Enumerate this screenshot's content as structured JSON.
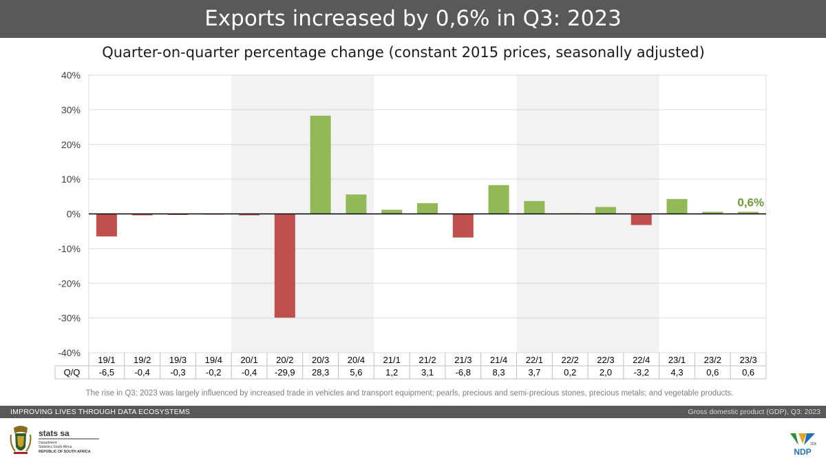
{
  "header": {
    "title": "Exports increased by 0,6% in Q3: 2023",
    "subtitle": "Quarter-on-quarter percentage change (constant 2015 prices, seasonally adjusted)"
  },
  "chart_data": {
    "type": "bar",
    "title": "Quarter-on-quarter percentage change (constant 2015 prices, seasonally adjusted)",
    "categories": [
      "19/1",
      "19/2",
      "19/3",
      "19/4",
      "20/1",
      "20/2",
      "20/3",
      "20/4",
      "21/1",
      "21/2",
      "21/3",
      "21/4",
      "22/1",
      "22/2",
      "22/3",
      "22/4",
      "23/1",
      "23/2",
      "23/3"
    ],
    "series": [
      {
        "name": "Q/Q",
        "values": [
          -6.5,
          -0.4,
          -0.3,
          -0.2,
          -0.4,
          -29.9,
          28.3,
          5.6,
          1.2,
          3.1,
          -6.8,
          8.3,
          3.7,
          0.2,
          2.0,
          -3.2,
          4.3,
          0.6,
          0.6
        ],
        "labels": [
          "-6,5",
          "-0,4",
          "-0,3",
          "-0,2",
          "-0,4",
          "-29,9",
          "28,3",
          "5,6",
          "1,2",
          "3,1",
          "-6,8",
          "8,3",
          "3,7",
          "0,2",
          "2,0",
          "-3,2",
          "4,3",
          "0,6",
          "0,6"
        ]
      }
    ],
    "ylim": [
      -40,
      40
    ],
    "yticks": [
      -40,
      -30,
      -20,
      -10,
      0,
      10,
      20,
      30,
      40
    ],
    "ytick_labels": [
      "-40%",
      "-30%",
      "-20%",
      "-10%",
      "0%",
      "10%",
      "20%",
      "30%",
      "40%"
    ],
    "grid": true,
    "shaded_years": [
      "2020",
      "2022"
    ],
    "table_row_label": "Q/Q",
    "annotation": {
      "text": "0,6%",
      "category": "23/3"
    },
    "colors": {
      "positive": "#92b957",
      "negative": "#c0504d",
      "shade": "#f2f2f2",
      "annotation": "#6e9a34"
    }
  },
  "footnote": "The rise in Q3: 2023 was largely influenced by increased trade in vehicles and transport equipment; pearls, precious and semi-precious stones, precious metals; and vegetable products.",
  "footer": {
    "left": "IMPROVING LIVES THROUGH DATA ECOSYSTEMS",
    "right": "Gross domestic product (GDP), Q3: 2023"
  },
  "logos": {
    "stats_name": "stats sa",
    "stats_dept": "Department:",
    "stats_dept_name": "Statistics South Africa",
    "stats_country": "REPUBLIC OF SOUTH AFRICA",
    "ndp_year": "2030",
    "ndp_text": "NDP"
  }
}
